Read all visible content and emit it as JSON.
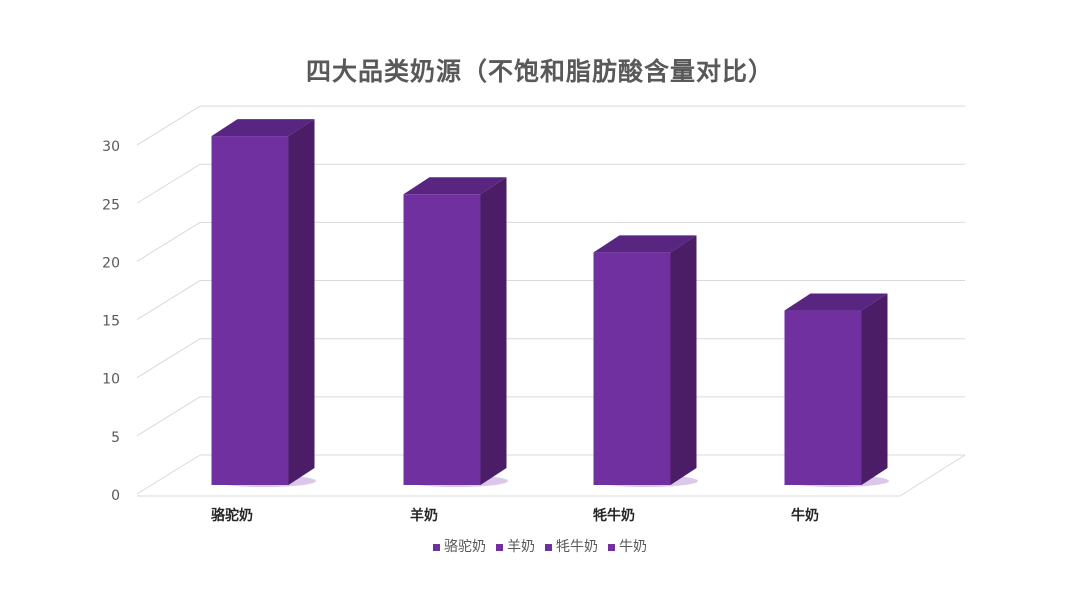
{
  "chart_data": {
    "type": "bar",
    "style": "3d-column",
    "title": "四大品类奶源（不饱和脂肪酸含量对比）",
    "categories": [
      "骆驼奶",
      "羊奶",
      "牦牛奶",
      "牛奶"
    ],
    "values": [
      30,
      25,
      20,
      15
    ],
    "ylim": [
      0,
      30
    ],
    "yticks": [
      "0",
      "5",
      "10",
      "15",
      "20",
      "25",
      "30"
    ],
    "grid": true,
    "legend_position": "bottom",
    "legend": [
      "骆驼奶",
      "羊奶",
      "牦牛奶",
      "牛奶"
    ],
    "colors": {
      "front": "#7030a0",
      "side": "#4a1d66",
      "top": "#582580",
      "grid": "#d9d9d9"
    }
  }
}
